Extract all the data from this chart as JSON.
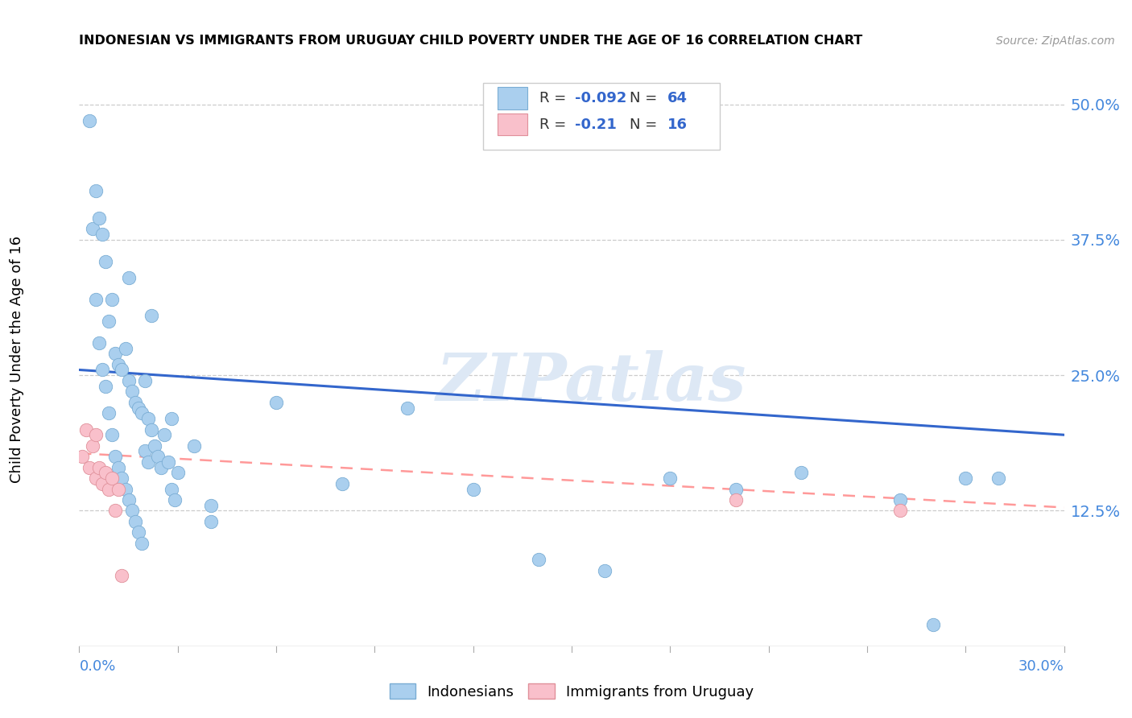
{
  "title": "INDONESIAN VS IMMIGRANTS FROM URUGUAY CHILD POVERTY UNDER THE AGE OF 16 CORRELATION CHART",
  "source": "Source: ZipAtlas.com",
  "ylabel": "Child Poverty Under the Age of 16",
  "ytick_vals": [
    0.125,
    0.25,
    0.375,
    0.5
  ],
  "ytick_labels": [
    "12.5%",
    "25.0%",
    "37.5%",
    "50.0%"
  ],
  "xmin": 0.0,
  "xmax": 0.3,
  "ymin": 0.0,
  "ymax": 0.53,
  "indonesian_R": -0.092,
  "indonesian_N": 64,
  "uruguay_R": -0.21,
  "uruguay_N": 16,
  "watermark": "ZIPatlas",
  "indonesian_color": "#aacfee",
  "indonesian_edge": "#7aadd4",
  "uruguay_color": "#f9c0cb",
  "uruguay_edge": "#e0909a",
  "trendline_blue": "#3366cc",
  "trendline_pink": "#ff9999",
  "indonesian_x": [
    0.003,
    0.004,
    0.005,
    0.005,
    0.006,
    0.006,
    0.007,
    0.007,
    0.008,
    0.008,
    0.009,
    0.009,
    0.01,
    0.01,
    0.011,
    0.011,
    0.012,
    0.012,
    0.013,
    0.013,
    0.014,
    0.014,
    0.015,
    0.015,
    0.016,
    0.016,
    0.017,
    0.017,
    0.018,
    0.018,
    0.019,
    0.019,
    0.02,
    0.02,
    0.021,
    0.021,
    0.022,
    0.023,
    0.024,
    0.025,
    0.026,
    0.027,
    0.028,
    0.029,
    0.03,
    0.035,
    0.04,
    0.06,
    0.08,
    0.1,
    0.12,
    0.14,
    0.16,
    0.18,
    0.2,
    0.22,
    0.25,
    0.26,
    0.27,
    0.28,
    0.015,
    0.022,
    0.028,
    0.04
  ],
  "indonesian_y": [
    0.485,
    0.385,
    0.42,
    0.32,
    0.395,
    0.28,
    0.38,
    0.255,
    0.355,
    0.24,
    0.3,
    0.215,
    0.32,
    0.195,
    0.27,
    0.175,
    0.26,
    0.165,
    0.255,
    0.155,
    0.275,
    0.145,
    0.245,
    0.135,
    0.235,
    0.125,
    0.225,
    0.115,
    0.22,
    0.105,
    0.215,
    0.095,
    0.245,
    0.18,
    0.21,
    0.17,
    0.2,
    0.185,
    0.175,
    0.165,
    0.195,
    0.17,
    0.145,
    0.135,
    0.16,
    0.185,
    0.13,
    0.225,
    0.15,
    0.22,
    0.145,
    0.08,
    0.07,
    0.155,
    0.145,
    0.16,
    0.135,
    0.02,
    0.155,
    0.155,
    0.34,
    0.305,
    0.21,
    0.115
  ],
  "uruguay_x": [
    0.001,
    0.002,
    0.003,
    0.004,
    0.005,
    0.005,
    0.006,
    0.007,
    0.008,
    0.009,
    0.01,
    0.011,
    0.012,
    0.013,
    0.2,
    0.25
  ],
  "uruguay_y": [
    0.175,
    0.2,
    0.165,
    0.185,
    0.195,
    0.155,
    0.165,
    0.15,
    0.16,
    0.145,
    0.155,
    0.125,
    0.145,
    0.065,
    0.135,
    0.125
  ],
  "trend_indo_x0": 0.0,
  "trend_indo_y0": 0.255,
  "trend_indo_x1": 0.3,
  "trend_indo_y1": 0.195,
  "trend_urug_x0": 0.0,
  "trend_urug_y0": 0.178,
  "trend_urug_x1": 0.3,
  "trend_urug_y1": 0.128
}
